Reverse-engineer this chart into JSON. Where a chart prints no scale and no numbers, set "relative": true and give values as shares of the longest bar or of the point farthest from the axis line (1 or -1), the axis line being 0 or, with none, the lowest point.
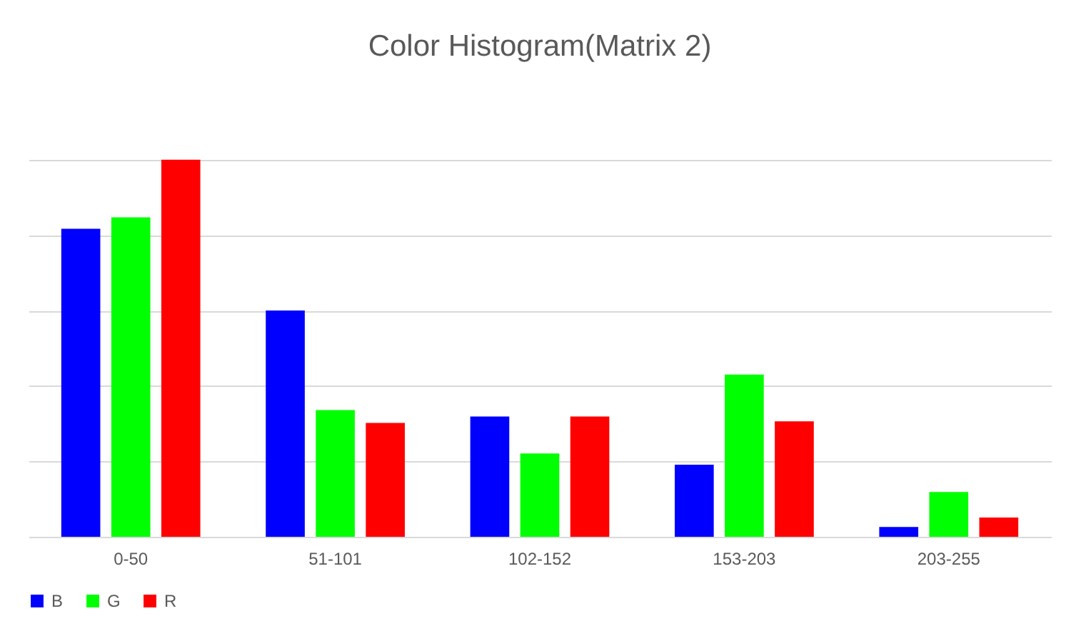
{
  "chart_data": {
    "type": "bar",
    "title": "Color Histogram(Matrix 2)",
    "relative": true,
    "grid": "y",
    "legend": "bottom",
    "categories": [
      "0-50",
      "51-101",
      "102-152",
      "153-203",
      "203-255"
    ],
    "series": [
      {
        "name": "B",
        "color": "#0000ff",
        "values": [
          0.817,
          0.6,
          0.319,
          0.191,
          0.026
        ]
      },
      {
        "name": "G",
        "color": "#00ff00",
        "values": [
          0.847,
          0.336,
          0.221,
          0.43,
          0.119
        ]
      },
      {
        "name": "R",
        "color": "#ff0000",
        "values": [
          1,
          0.302,
          0.319,
          0.306,
          0.051
        ]
      }
    ]
  }
}
